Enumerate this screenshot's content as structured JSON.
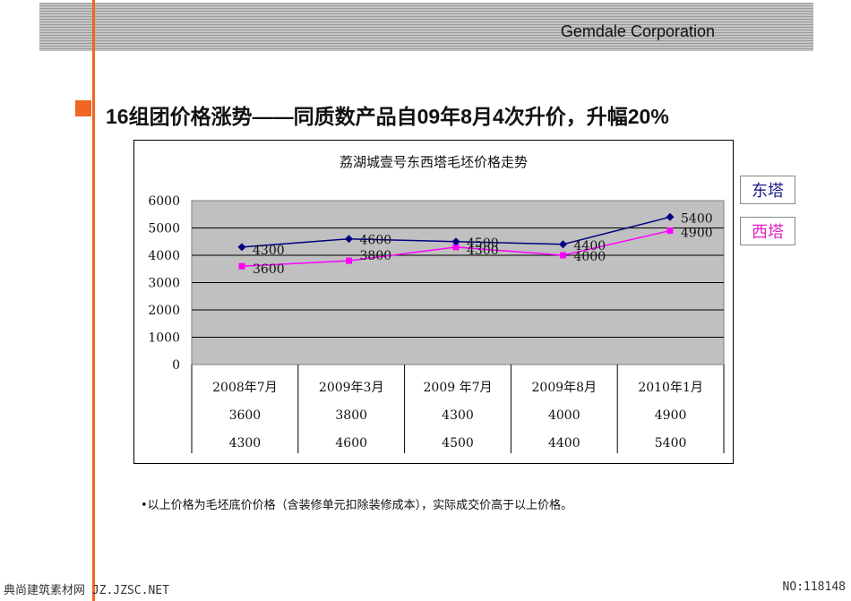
{
  "header": {
    "company": "Gemdale Corporation"
  },
  "headline": "16组团价格涨势——同质数产品自09年8月4次升价，升幅20%",
  "legend_labels": {
    "east": "东塔",
    "west": "西塔"
  },
  "note": "•以上价格为毛坯底价价格（含装修单元扣除装修成本），实际成交价高于以上价格。",
  "footer": {
    "left": "典尚建筑素材网 JZ.JZSC.NET",
    "right": "NO:118148"
  },
  "colors": {
    "accent": "#f26522",
    "east": "#000080",
    "west": "#ff00ff",
    "plot_bg": "#c0c0c0"
  },
  "chart_data": {
    "type": "line",
    "title": "荔湖城壹号东西塔毛坯价格走势",
    "categories": [
      "2008年7月",
      "2009年3月",
      "2009  年7月",
      "2009年8月",
      "2010年1月"
    ],
    "series": [
      {
        "name": "西塔",
        "values": [
          3600,
          3800,
          4300,
          4000,
          4900
        ],
        "color": "#ff00ff",
        "marker": "square"
      },
      {
        "name": "东塔",
        "values": [
          4300,
          4600,
          4500,
          4400,
          5400
        ],
        "color": "#000080",
        "marker": "diamond"
      }
    ],
    "ylim": [
      0,
      6000
    ],
    "yticks": [
      0,
      1000,
      2000,
      3000,
      4000,
      5000,
      6000
    ],
    "grid": true,
    "data_table": true,
    "legend": "right"
  }
}
